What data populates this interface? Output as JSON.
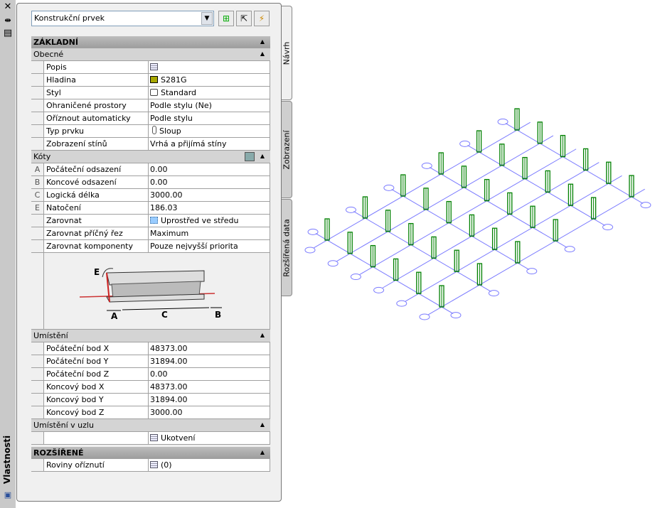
{
  "palette": {
    "title": "Vlastnosti",
    "close": "✕",
    "autohide": "⇹",
    "props_icon": "properties-icon"
  },
  "toolbar": {
    "selected": "Konstrukční prvek",
    "buttons": [
      "quick-select-icon",
      "select-objects-icon",
      "toggle-pickadd-icon"
    ]
  },
  "tabs": [
    "Návrh",
    "Zobrazení",
    "Rozšířená data"
  ],
  "grid": [
    {
      "type": "h1",
      "label": "ZÁKLADNÍ"
    },
    {
      "type": "h2",
      "label": "Obecné"
    },
    {
      "type": "p",
      "label": "Popis",
      "value": "",
      "icon": "table"
    },
    {
      "type": "p",
      "label": "Hladina",
      "value": "S281G",
      "icon": "swatch",
      "color": "#a8a800"
    },
    {
      "type": "p",
      "label": "Styl",
      "value": "Standard",
      "icon": "style"
    },
    {
      "type": "p",
      "label": "Ohraničené prostory",
      "value": "Podle stylu (Ne)"
    },
    {
      "type": "p",
      "label": "Oříznout automaticky",
      "value": "Podle stylu"
    },
    {
      "type": "p",
      "label": "Typ prvku",
      "value": "Sloup",
      "icon": "column"
    },
    {
      "type": "p",
      "label": "Zobrazení stínů",
      "value": "Vrhá a přijímá stíny"
    },
    {
      "type": "h2",
      "label": "Kóty",
      "extra": true
    },
    {
      "type": "p",
      "gutter": "A",
      "label": "Počáteční odsazení",
      "value": "0.00"
    },
    {
      "type": "p",
      "gutter": "B",
      "label": "Koncové odsazení",
      "value": "0.00"
    },
    {
      "type": "p",
      "gutter": "C",
      "label": "Logická délka",
      "value": "3000.00"
    },
    {
      "type": "p",
      "gutter": "E",
      "label": "Natočení",
      "value": "186.03"
    },
    {
      "type": "p",
      "label": "Zarovnat",
      "value": "Uprostřed ve středu",
      "icon": "justify"
    },
    {
      "type": "p",
      "label": "Zarovnat příčný řez",
      "value": "Maximum"
    },
    {
      "type": "p",
      "label": "Zarovnat komponenty",
      "value": "Pouze nejvyšší priorita"
    },
    {
      "type": "img",
      "labels": [
        "E",
        "A",
        "C",
        "B"
      ]
    },
    {
      "type": "h2",
      "label": "Umístění"
    },
    {
      "type": "p",
      "label": "Počáteční bod X",
      "value": "48373.00"
    },
    {
      "type": "p",
      "label": "Počáteční bod Y",
      "value": "31894.00"
    },
    {
      "type": "p",
      "label": "Počáteční bod Z",
      "value": "0.00"
    },
    {
      "type": "p",
      "label": "Koncový bod X",
      "value": "48373.00"
    },
    {
      "type": "p",
      "label": "Koncový bod Y",
      "value": "31894.00"
    },
    {
      "type": "p",
      "label": "Koncový bod Z",
      "value": "3000.00"
    },
    {
      "type": "h2",
      "label": "Umístění v uzlu"
    },
    {
      "type": "p",
      "label": "",
      "value": "Ukotvení",
      "icon": "table"
    },
    {
      "type": "h1",
      "label": "ROZŠÍŘENÉ"
    },
    {
      "type": "p",
      "label": "Roviny oříznutí",
      "value": "(0)",
      "icon": "table"
    }
  ],
  "model": {
    "columns_u": 6,
    "columns_v": 6,
    "column_color": "#008000",
    "grid_color": "#7b7bff"
  }
}
